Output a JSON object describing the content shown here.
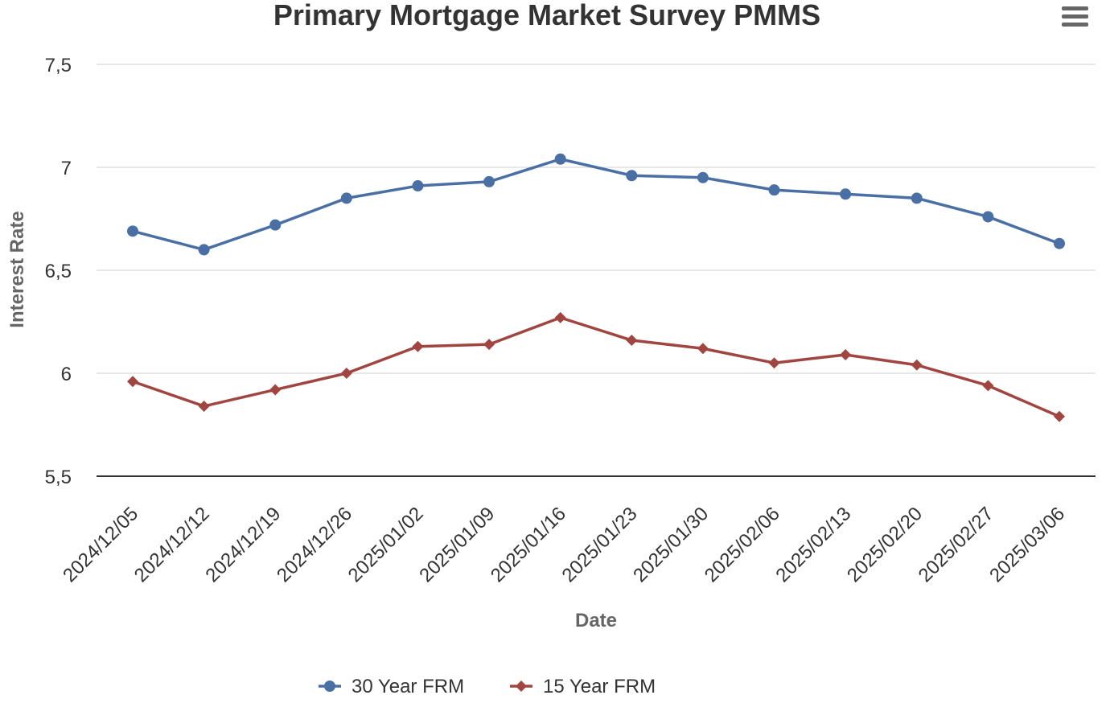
{
  "chart_data": {
    "type": "line",
    "title": "Primary Mortgage Market Survey PMMS",
    "xlabel": "Date",
    "ylabel": "Interest Rate",
    "ylim": [
      5.5,
      7.5
    ],
    "yticks": [
      5.5,
      6,
      6.5,
      7,
      7.5
    ],
    "ytick_labels": [
      "5,5",
      "6",
      "6,5",
      "7",
      "7,5"
    ],
    "grid": true,
    "legend_position": "bottom",
    "categories": [
      "2024/12/05",
      "2024/12/12",
      "2024/12/19",
      "2024/12/26",
      "2025/01/02",
      "2025/01/09",
      "2025/01/16",
      "2025/01/23",
      "2025/01/30",
      "2025/02/06",
      "2025/02/13",
      "2025/02/20",
      "2025/02/27",
      "2025/03/06"
    ],
    "series": [
      {
        "name": "30 Year FRM",
        "color": "#4a6fa5",
        "marker": "circle",
        "values": [
          6.69,
          6.6,
          6.72,
          6.85,
          6.91,
          6.93,
          7.04,
          6.96,
          6.95,
          6.89,
          6.87,
          6.85,
          6.76,
          6.63
        ]
      },
      {
        "name": "15 Year FRM",
        "color": "#a0453f",
        "marker": "diamond",
        "values": [
          5.96,
          5.84,
          5.92,
          6.0,
          6.13,
          6.14,
          6.27,
          6.16,
          6.12,
          6.05,
          6.09,
          6.04,
          5.94,
          5.79
        ]
      }
    ]
  },
  "menu": {
    "icon": "hamburger-menu-icon"
  }
}
